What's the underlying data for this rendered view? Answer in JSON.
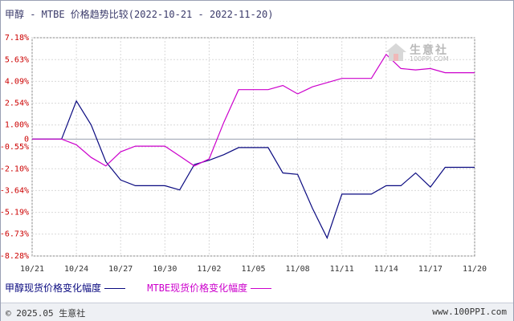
{
  "title": "甲醇 - MTBE 价格趋势比较(2022-10-21 - 2022-11-20)",
  "watermark": {
    "name": "生意社",
    "url": "100PPI.COM"
  },
  "footer": {
    "copyright": "© 2025.05 生意社",
    "site": "www.100PPI.com"
  },
  "legend": [
    {
      "label": "甲醇现货价格变化幅度",
      "color": "#0a0a80"
    },
    {
      "label": "MTBE现货价格变化幅度",
      "color": "#cc00cc"
    }
  ],
  "chart_data": {
    "type": "line",
    "title": "甲醇 - MTBE 价格趋势比较(2022-10-21 - 2022-11-20)",
    "x_ticks": [
      "10/21",
      "10/24",
      "10/27",
      "10/30",
      "11/02",
      "11/05",
      "11/08",
      "11/11",
      "11/14",
      "11/17",
      "11/20"
    ],
    "x_days": [
      0,
      3,
      6,
      9,
      12,
      15,
      18,
      21,
      24,
      27,
      30
    ],
    "y_ticks": [
      "7.18%",
      "5.63%",
      "4.09%",
      "2.54%",
      "1.00%",
      "-0.55%",
      "-2.10%",
      "-3.64%",
      "-5.19%",
      "-6.73%",
      "-8.28%"
    ],
    "y_tick_values": [
      7.18,
      5.63,
      4.09,
      2.54,
      1.0,
      -0.55,
      -2.1,
      -3.64,
      -5.19,
      -6.73,
      -8.28
    ],
    "zero_label": "0",
    "ylim": [
      -8.28,
      7.18
    ],
    "xlim": [
      0,
      30
    ],
    "grid": true,
    "series": [
      {
        "name": "甲醇现货价格变化幅度",
        "color": "#0a0a80",
        "x": [
          0,
          2,
          3,
          4,
          5,
          6,
          7,
          8,
          9,
          10,
          11,
          12,
          13,
          14,
          15,
          16,
          17,
          18,
          19,
          20,
          21,
          22,
          23,
          24,
          25,
          26,
          27,
          28,
          29,
          30
        ],
        "y": [
          0,
          0,
          2.7,
          1.0,
          -1.6,
          -2.9,
          -3.3,
          -3.3,
          -3.3,
          -3.6,
          -1.8,
          -1.5,
          -1.1,
          -0.6,
          -0.6,
          -0.6,
          -2.4,
          -2.5,
          -4.9,
          -7.0,
          -3.9,
          -3.9,
          -3.9,
          -3.3,
          -3.3,
          -2.4,
          -3.4,
          -2.0,
          -2.0,
          -2.0
        ]
      },
      {
        "name": "MTBE现货价格变化幅度",
        "color": "#cc00cc",
        "x": [
          0,
          2,
          3,
          4,
          5,
          6,
          7,
          8,
          9,
          10,
          11,
          12,
          13,
          14,
          15,
          16,
          17,
          18,
          19,
          20,
          21,
          22,
          23,
          24,
          25,
          26,
          27,
          28,
          29,
          30
        ],
        "y": [
          0,
          0,
          -0.4,
          -1.3,
          -1.9,
          -0.9,
          -0.5,
          -0.5,
          -0.5,
          -1.2,
          -1.9,
          -1.4,
          1.2,
          3.5,
          3.5,
          3.5,
          3.8,
          3.2,
          3.7,
          4.0,
          4.3,
          4.3,
          4.3,
          6.0,
          5.0,
          4.9,
          5.0,
          4.7,
          4.7,
          4.7
        ]
      }
    ]
  }
}
